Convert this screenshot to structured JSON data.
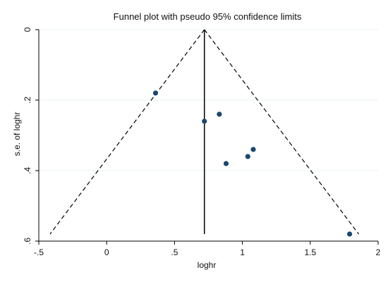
{
  "chart_data": {
    "type": "scatter",
    "title": "Funnel plot with pseudo 95% confidence limits",
    "xlabel": "loghr",
    "ylabel": "s.e. of loghr",
    "xlim": [
      -0.5,
      2.0
    ],
    "ylim": [
      0.0,
      0.6
    ],
    "y_reversed": true,
    "grid": true,
    "x_ticks": [
      -0.5,
      0,
      0.5,
      1,
      1.5,
      2
    ],
    "x_tick_labels": [
      "-.5",
      "0",
      ".5",
      "1",
      "1.5",
      "2"
    ],
    "y_ticks": [
      0,
      0.2,
      0.4,
      0.6
    ],
    "y_tick_labels": [
      "0",
      ".2",
      ".4",
      ".6"
    ],
    "pooled_effect": 0.72,
    "funnel_max_se": 0.58,
    "points": [
      {
        "x": 0.36,
        "y": 0.18
      },
      {
        "x": 0.72,
        "y": 0.26
      },
      {
        "x": 0.83,
        "y": 0.24
      },
      {
        "x": 0.88,
        "y": 0.38
      },
      {
        "x": 1.04,
        "y": 0.36
      },
      {
        "x": 1.08,
        "y": 0.34
      },
      {
        "x": 1.79,
        "y": 0.58
      }
    ],
    "colors": {
      "point": "#1a476f",
      "grid": "#eaf2f3",
      "line": "#000000"
    }
  }
}
